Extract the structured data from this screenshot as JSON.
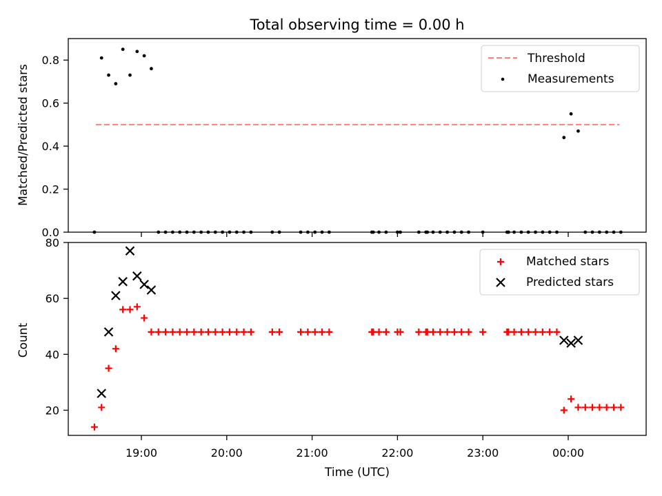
{
  "chart_data": [
    {
      "type": "scatter",
      "title": "Total observing time = 0.00 h",
      "xlabel": "",
      "ylabel": "Matched/Predicted stars",
      "ylim": [
        0,
        0.9
      ],
      "yticks": [
        "0.0",
        "0.2",
        "0.4",
        "0.6",
        "0.8"
      ],
      "legend_position": "top-right",
      "threshold": {
        "name": "Threshold",
        "value": 0.5,
        "x_range": [
          "18:28",
          "00:36"
        ],
        "color": "#ff7f7f"
      },
      "series": [
        {
          "name": "Measurements",
          "color": "#000000",
          "marker": "dot",
          "points": [
            [
              "18:27",
              0.0
            ],
            [
              "18:32",
              0.81
            ],
            [
              "18:37",
              0.73
            ],
            [
              "18:42",
              0.69
            ],
            [
              "18:47",
              0.85
            ],
            [
              "18:52",
              0.73
            ],
            [
              "18:57",
              0.84
            ],
            [
              "19:02",
              0.82
            ],
            [
              "19:07",
              0.76
            ],
            [
              "19:12",
              0.0
            ],
            [
              "19:17",
              0.0
            ],
            [
              "19:22",
              0.0
            ],
            [
              "19:27",
              0.0
            ],
            [
              "19:32",
              0.0
            ],
            [
              "19:37",
              0.0
            ],
            [
              "19:42",
              0.0
            ],
            [
              "19:47",
              0.0
            ],
            [
              "19:52",
              0.0
            ],
            [
              "19:57",
              0.0
            ],
            [
              "20:02",
              0.0
            ],
            [
              "20:07",
              0.0
            ],
            [
              "20:12",
              0.0
            ],
            [
              "20:17",
              0.0
            ],
            [
              "20:32",
              0.0
            ],
            [
              "20:37",
              0.0
            ],
            [
              "20:52",
              0.0
            ],
            [
              "20:57",
              0.0
            ],
            [
              "21:02",
              0.0
            ],
            [
              "21:07",
              0.0
            ],
            [
              "21:12",
              0.0
            ],
            [
              "21:42",
              0.0
            ],
            [
              "21:43",
              0.0
            ],
            [
              "21:47",
              0.0
            ],
            [
              "21:52",
              0.0
            ],
            [
              "22:00",
              0.0
            ],
            [
              "22:02",
              0.0
            ],
            [
              "22:15",
              0.0
            ],
            [
              "22:20",
              0.0
            ],
            [
              "22:21",
              0.0
            ],
            [
              "22:25",
              0.0
            ],
            [
              "22:30",
              0.0
            ],
            [
              "22:35",
              0.0
            ],
            [
              "22:40",
              0.0
            ],
            [
              "22:45",
              0.0
            ],
            [
              "22:50",
              0.0
            ],
            [
              "23:00",
              0.0
            ],
            [
              "23:17",
              0.0
            ],
            [
              "23:18",
              0.0
            ],
            [
              "23:22",
              0.0
            ],
            [
              "23:27",
              0.0
            ],
            [
              "23:32",
              0.0
            ],
            [
              "23:37",
              0.0
            ],
            [
              "23:42",
              0.0
            ],
            [
              "23:47",
              0.0
            ],
            [
              "23:52",
              0.0
            ],
            [
              "23:57",
              0.44
            ],
            [
              "00:02",
              0.55
            ],
            [
              "00:07",
              0.47
            ],
            [
              "00:12",
              0.0
            ],
            [
              "00:17",
              0.0
            ],
            [
              "00:22",
              0.0
            ],
            [
              "00:27",
              0.0
            ],
            [
              "00:32",
              0.0
            ],
            [
              "00:37",
              0.0
            ]
          ]
        }
      ]
    },
    {
      "type": "scatter",
      "title": "",
      "xlabel": "Time (UTC)",
      "ylabel": "Count",
      "ylim": [
        11,
        80
      ],
      "yticks": [
        "20",
        "40",
        "60",
        "80"
      ],
      "xticks": [
        "19:00",
        "20:00",
        "21:00",
        "22:00",
        "23:00",
        "00:00"
      ],
      "legend_position": "top-right",
      "series": [
        {
          "name": "Matched stars",
          "color": "#ff0000",
          "marker": "plus",
          "points": [
            [
              "18:27",
              14
            ],
            [
              "18:32",
              21
            ],
            [
              "18:37",
              35
            ],
            [
              "18:42",
              42
            ],
            [
              "18:47",
              56
            ],
            [
              "18:52",
              56
            ],
            [
              "18:57",
              57
            ],
            [
              "19:02",
              53
            ],
            [
              "19:07",
              48
            ],
            [
              "19:12",
              48
            ],
            [
              "19:17",
              48
            ],
            [
              "19:22",
              48
            ],
            [
              "19:27",
              48
            ],
            [
              "19:32",
              48
            ],
            [
              "19:37",
              48
            ],
            [
              "19:42",
              48
            ],
            [
              "19:47",
              48
            ],
            [
              "19:52",
              48
            ],
            [
              "19:57",
              48
            ],
            [
              "20:02",
              48
            ],
            [
              "20:07",
              48
            ],
            [
              "20:12",
              48
            ],
            [
              "20:17",
              48
            ],
            [
              "20:32",
              48
            ],
            [
              "20:37",
              48
            ],
            [
              "20:52",
              48
            ],
            [
              "20:57",
              48
            ],
            [
              "21:02",
              48
            ],
            [
              "21:07",
              48
            ],
            [
              "21:12",
              48
            ],
            [
              "21:42",
              48
            ],
            [
              "21:43",
              48
            ],
            [
              "21:47",
              48
            ],
            [
              "21:52",
              48
            ],
            [
              "22:00",
              48
            ],
            [
              "22:02",
              48
            ],
            [
              "22:15",
              48
            ],
            [
              "22:20",
              48
            ],
            [
              "22:21",
              48
            ],
            [
              "22:25",
              48
            ],
            [
              "22:30",
              48
            ],
            [
              "22:35",
              48
            ],
            [
              "22:40",
              48
            ],
            [
              "22:45",
              48
            ],
            [
              "22:50",
              48
            ],
            [
              "23:00",
              48
            ],
            [
              "23:17",
              48
            ],
            [
              "23:18",
              48
            ],
            [
              "23:22",
              48
            ],
            [
              "23:27",
              48
            ],
            [
              "23:32",
              48
            ],
            [
              "23:37",
              48
            ],
            [
              "23:42",
              48
            ],
            [
              "23:47",
              48
            ],
            [
              "23:52",
              48
            ],
            [
              "23:57",
              20
            ],
            [
              "00:02",
              24
            ],
            [
              "00:07",
              21
            ],
            [
              "00:12",
              21
            ],
            [
              "00:17",
              21
            ],
            [
              "00:22",
              21
            ],
            [
              "00:27",
              21
            ],
            [
              "00:32",
              21
            ],
            [
              "00:37",
              21
            ]
          ]
        },
        {
          "name": "Predicted stars",
          "color": "#000000",
          "marker": "x",
          "points": [
            [
              "18:32",
              26
            ],
            [
              "18:37",
              48
            ],
            [
              "18:42",
              61
            ],
            [
              "18:47",
              66
            ],
            [
              "18:52",
              77
            ],
            [
              "18:57",
              68
            ],
            [
              "19:02",
              65
            ],
            [
              "19:07",
              63
            ],
            [
              "23:57",
              45
            ],
            [
              "00:02",
              44
            ],
            [
              "00:07",
              45
            ]
          ]
        }
      ]
    }
  ]
}
